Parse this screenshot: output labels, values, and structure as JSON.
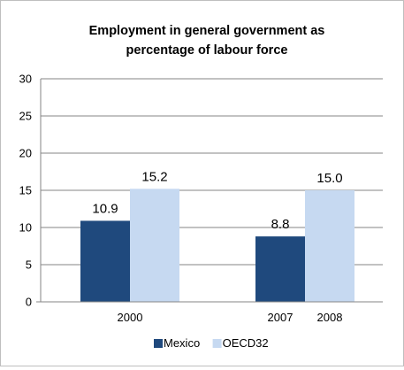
{
  "chart_data": {
    "type": "bar",
    "title_lines": [
      "Employment in general government as",
      "percentage of labour force"
    ],
    "categories": [
      "2000",
      "2007",
      "2008"
    ],
    "series": [
      {
        "name": "Mexico",
        "color": "#1f497d",
        "values": [
          10.9,
          8.8,
          null
        ]
      },
      {
        "name": "OECD32",
        "color": "#c6d9f1",
        "values": [
          15.2,
          null,
          15.0
        ]
      }
    ],
    "data_labels": [
      {
        "series": "Mexico",
        "category": "2000",
        "text": "10.9"
      },
      {
        "series": "OECD32",
        "category": "2000",
        "text": "15.2"
      },
      {
        "series": "Mexico",
        "category": "2007",
        "text": "8.8"
      },
      {
        "series": "OECD32",
        "category": "2008",
        "text": "15.0"
      }
    ],
    "ylim": [
      0,
      30
    ],
    "yticks": [
      "0",
      "5",
      "10",
      "15",
      "20",
      "25",
      "30"
    ],
    "grid": true,
    "legend": "bottom"
  }
}
